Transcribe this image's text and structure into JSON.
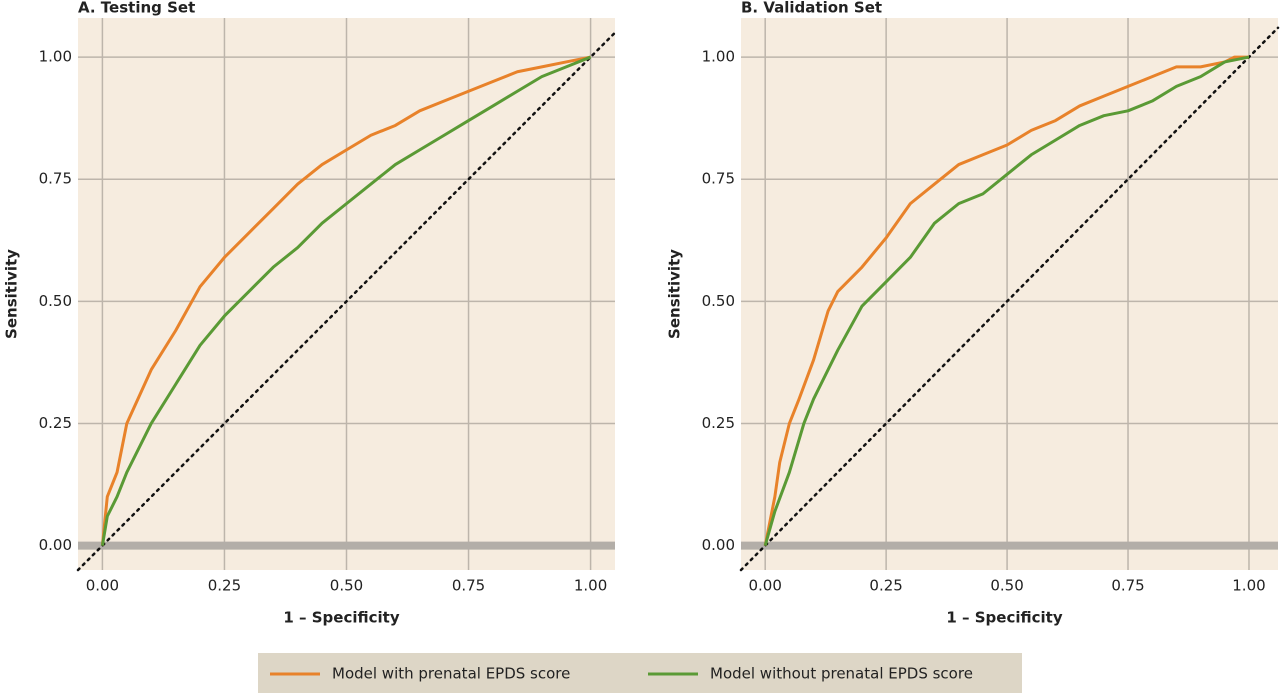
{
  "chart_data": [
    {
      "type": "line",
      "title": "A. Testing Set",
      "xlabel": "1 – Specificity",
      "ylabel": "Sensitivity",
      "xlim": [
        -0.05,
        1.05
      ],
      "ylim": [
        -0.05,
        1.08
      ],
      "xticks": [
        {
          "value": 0,
          "label": "0.00"
        },
        {
          "value": 0.25,
          "label": "0.25"
        },
        {
          "value": 0.5,
          "label": "0.50"
        },
        {
          "value": 0.75,
          "label": "0.75"
        },
        {
          "value": 1,
          "label": "1.00"
        }
      ],
      "yticks": [
        {
          "value": 0,
          "label": "0.00"
        },
        {
          "value": 0.25,
          "label": "0.25"
        },
        {
          "value": 0.5,
          "label": "0.50"
        },
        {
          "value": 0.75,
          "label": "0.75"
        },
        {
          "value": 1,
          "label": "1.00"
        }
      ],
      "grid": true,
      "diagonal": true,
      "baseline": 0,
      "legend": "bottom",
      "series": [
        {
          "name": "Model with prenatal EPDS score",
          "color": "#e8822a",
          "x": [
            0,
            0.005,
            0.01,
            0.03,
            0.05,
            0.1,
            0.15,
            0.2,
            0.25,
            0.3,
            0.35,
            0.4,
            0.45,
            0.5,
            0.55,
            0.6,
            0.65,
            0.7,
            0.75,
            0.8,
            0.85,
            0.9,
            0.95,
            1
          ],
          "values": [
            0,
            0.05,
            0.1,
            0.15,
            0.25,
            0.36,
            0.44,
            0.53,
            0.59,
            0.64,
            0.69,
            0.74,
            0.78,
            0.81,
            0.84,
            0.86,
            0.89,
            0.91,
            0.93,
            0.95,
            0.97,
            0.98,
            0.99,
            1
          ]
        },
        {
          "name": "Model without prenatal EPDS score",
          "color": "#5a9a35",
          "x": [
            0,
            0.01,
            0.03,
            0.05,
            0.1,
            0.15,
            0.2,
            0.25,
            0.3,
            0.35,
            0.4,
            0.45,
            0.5,
            0.55,
            0.6,
            0.65,
            0.7,
            0.75,
            0.8,
            0.85,
            0.9,
            0.95,
            1
          ],
          "values": [
            0,
            0.06,
            0.1,
            0.15,
            0.25,
            0.33,
            0.41,
            0.47,
            0.52,
            0.57,
            0.61,
            0.66,
            0.7,
            0.74,
            0.78,
            0.81,
            0.84,
            0.87,
            0.9,
            0.93,
            0.96,
            0.98,
            1
          ]
        }
      ]
    },
    {
      "type": "line",
      "title": "B. Validation Set",
      "xlabel": "1 – Specificity",
      "ylabel": "Sensitivity",
      "xlim": [
        -0.05,
        1.06
      ],
      "ylim": [
        -0.05,
        1.08
      ],
      "xticks": [
        {
          "value": 0,
          "label": "0.00"
        },
        {
          "value": 0.25,
          "label": "0.25"
        },
        {
          "value": 0.5,
          "label": "0.50"
        },
        {
          "value": 0.75,
          "label": "0.75"
        },
        {
          "value": 1,
          "label": "1.00"
        }
      ],
      "yticks": [
        {
          "value": 0,
          "label": "0.00"
        },
        {
          "value": 0.25,
          "label": "0.25"
        },
        {
          "value": 0.5,
          "label": "0.50"
        },
        {
          "value": 0.75,
          "label": "0.75"
        },
        {
          "value": 1,
          "label": "1.00"
        }
      ],
      "grid": true,
      "diagonal": true,
      "baseline": 0,
      "series": [
        {
          "color": "#e8822a",
          "x": [
            0,
            0.01,
            0.02,
            0.03,
            0.05,
            0.07,
            0.1,
            0.13,
            0.15,
            0.2,
            0.25,
            0.3,
            0.35,
            0.4,
            0.45,
            0.5,
            0.55,
            0.6,
            0.65,
            0.7,
            0.75,
            0.8,
            0.85,
            0.9,
            0.95,
            0.97,
            1
          ],
          "values": [
            0,
            0.05,
            0.1,
            0.17,
            0.25,
            0.3,
            0.38,
            0.48,
            0.52,
            0.57,
            0.63,
            0.7,
            0.74,
            0.78,
            0.8,
            0.82,
            0.85,
            0.87,
            0.9,
            0.92,
            0.94,
            0.96,
            0.98,
            0.98,
            0.99,
            1,
            1
          ]
        },
        {
          "color": "#5a9a35",
          "x": [
            0,
            0.02,
            0.05,
            0.08,
            0.1,
            0.15,
            0.2,
            0.25,
            0.3,
            0.35,
            0.4,
            0.45,
            0.5,
            0.55,
            0.6,
            0.65,
            0.7,
            0.75,
            0.8,
            0.85,
            0.9,
            0.95,
            1
          ],
          "values": [
            0,
            0.07,
            0.15,
            0.25,
            0.3,
            0.4,
            0.49,
            0.54,
            0.59,
            0.66,
            0.7,
            0.72,
            0.76,
            0.8,
            0.83,
            0.86,
            0.88,
            0.89,
            0.91,
            0.94,
            0.96,
            0.99,
            1
          ]
        }
      ]
    }
  ]
}
